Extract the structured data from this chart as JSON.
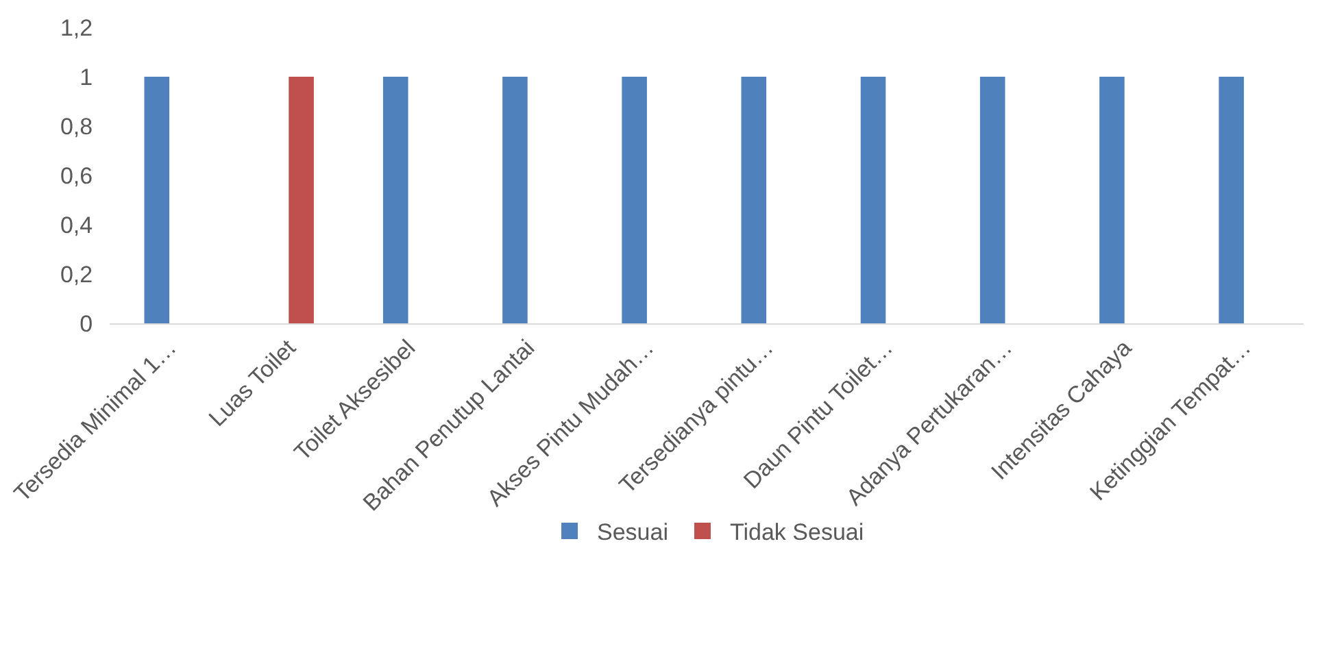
{
  "chart_data": {
    "type": "bar",
    "categories": [
      "Tersedia Minimal 1…",
      "Luas Toilet",
      "Toilet Aksesibel",
      "Bahan Penutup Lantai",
      "Akses Pintu Mudah…",
      "Tersedianya pintu…",
      "Daun Pintu Toilet…",
      "Adanya Pertukaran…",
      "Intensitas Cahaya",
      "Ketinggian Tempat…"
    ],
    "series": [
      {
        "name": "Sesuai",
        "color": "#4f81bd",
        "values": [
          1,
          0,
          1,
          1,
          1,
          1,
          1,
          1,
          1,
          1
        ]
      },
      {
        "name": "Tidak Sesuai",
        "color": "#c0504d",
        "values": [
          0,
          1,
          0,
          0,
          0,
          0,
          0,
          0,
          0,
          0
        ]
      }
    ],
    "ylim": [
      0,
      1.2
    ],
    "yticks": [
      0,
      {
        "value": 0.2,
        "label": "0,2"
      },
      {
        "value": 0.4,
        "label": "0,4"
      },
      {
        "value": 0.6,
        "label": "0,6"
      },
      {
        "value": 0.8,
        "label": "0,8"
      },
      1,
      {
        "value": 1.2,
        "label": "1,2"
      }
    ],
    "grid": false,
    "legend": "bottom"
  }
}
